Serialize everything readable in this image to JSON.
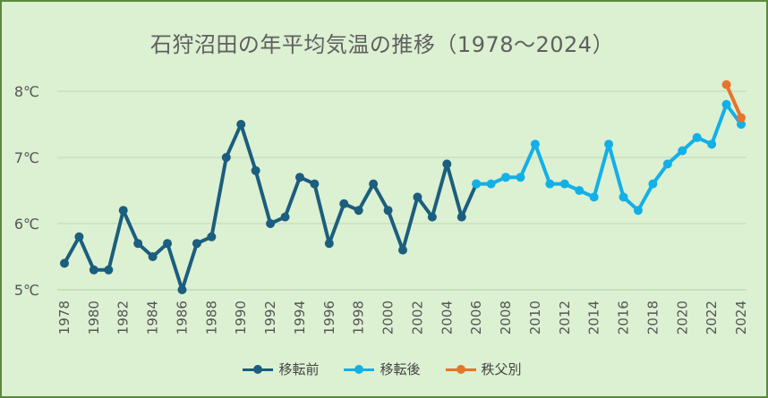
{
  "title": "石狩沼田の年平均気温の推移（1978～2024）",
  "chart_data": {
    "type": "line",
    "title": "石狩沼田の年平均気温の推移（1978～2024）",
    "xlim": [
      1978,
      2024
    ],
    "ylim": [
      5,
      8
    ],
    "ytick_values": [
      5,
      6,
      7,
      8
    ],
    "ytick_labels": [
      "5℃",
      "6℃",
      "7℃",
      "8℃"
    ],
    "xtick_values": [
      1978,
      1980,
      1982,
      1984,
      1986,
      1988,
      1990,
      1992,
      1994,
      1996,
      1998,
      2000,
      2002,
      2004,
      2006,
      2008,
      2010,
      2012,
      2014,
      2016,
      2018,
      2020,
      2022,
      2024
    ],
    "grid": true,
    "legend_position": "bottom",
    "series": [
      {
        "name": "移転前",
        "color": "#1b5e7e",
        "x": [
          1978,
          1979,
          1980,
          1981,
          1982,
          1983,
          1984,
          1985,
          1986,
          1987,
          1988,
          1989,
          1990,
          1991,
          1992,
          1993,
          1994,
          1995,
          1996,
          1997,
          1998,
          1999,
          2000,
          2001,
          2002,
          2003,
          2004,
          2005,
          2006
        ],
        "y": [
          5.4,
          5.8,
          5.3,
          5.3,
          6.2,
          5.7,
          5.5,
          5.7,
          5.0,
          5.7,
          5.8,
          7.0,
          7.5,
          6.8,
          6.0,
          6.1,
          6.7,
          6.6,
          5.7,
          6.3,
          6.2,
          6.6,
          6.2,
          5.6,
          6.4,
          6.1,
          6.9,
          6.1,
          6.6
        ]
      },
      {
        "name": "移転後",
        "color": "#12b0e8",
        "x": [
          2006,
          2007,
          2008,
          2009,
          2010,
          2011,
          2012,
          2013,
          2014,
          2015,
          2016,
          2017,
          2018,
          2019,
          2020,
          2021,
          2022,
          2023,
          2024
        ],
        "y": [
          6.6,
          6.6,
          6.7,
          6.7,
          7.2,
          6.6,
          6.6,
          6.5,
          6.4,
          7.2,
          6.4,
          6.2,
          6.6,
          6.9,
          7.1,
          7.3,
          7.2,
          7.8,
          7.5
        ]
      },
      {
        "name": "秩父別",
        "color": "#e8732a",
        "x": [
          2023,
          2024
        ],
        "y": [
          8.1,
          7.6
        ]
      }
    ]
  }
}
